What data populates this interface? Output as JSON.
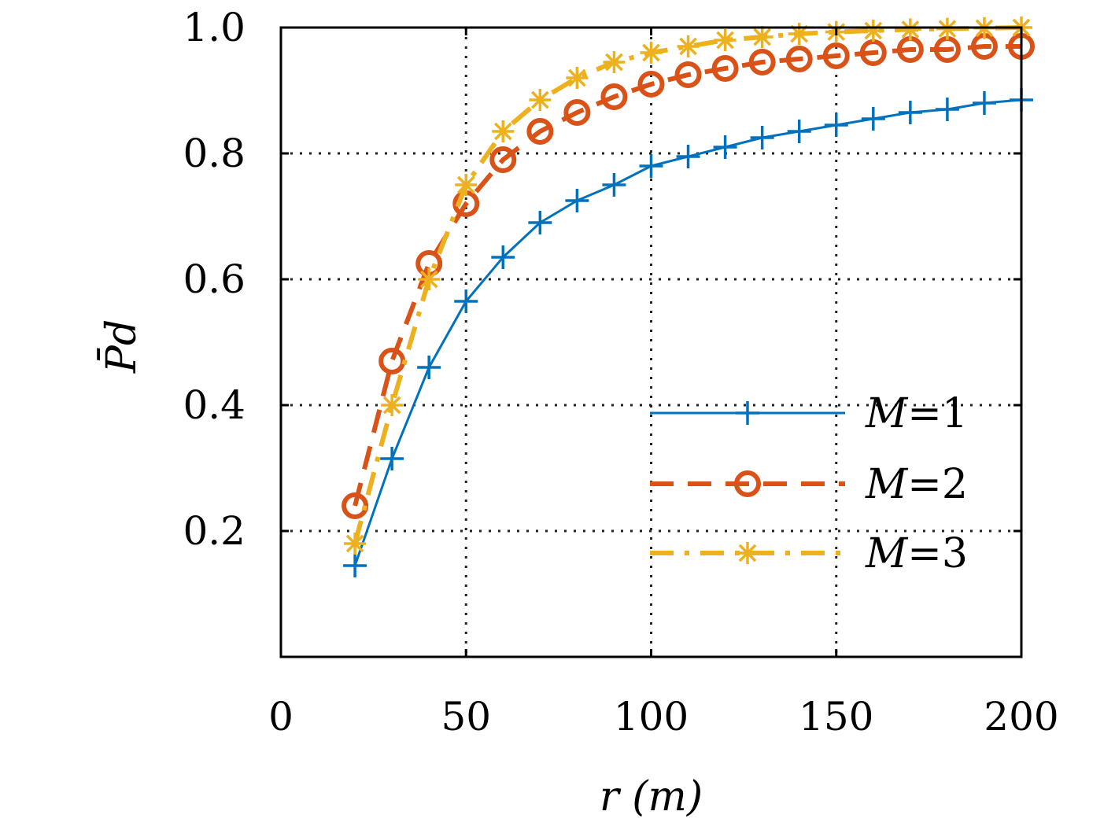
{
  "chart_data": {
    "type": "line",
    "title": "",
    "xlabel": "r (m)",
    "ylabel": "P̄d",
    "xlim": [
      0,
      200
    ],
    "ylim": [
      0,
      1.0
    ],
    "x_ticks": [
      0,
      50,
      100,
      150,
      200
    ],
    "x_tick_labels": [
      "0",
      "50",
      "100",
      "150",
      "200"
    ],
    "y_ticks": [
      0.2,
      0.4,
      0.6,
      0.8,
      1.0
    ],
    "y_tick_labels": [
      "0.2",
      "0.4",
      "0.6",
      "0.8",
      "1.0"
    ],
    "grid": true,
    "legend_position": "bottom-right",
    "x": [
      20,
      30,
      40,
      50,
      60,
      70,
      80,
      90,
      100,
      110,
      120,
      130,
      140,
      150,
      160,
      170,
      180,
      190,
      200
    ],
    "series": [
      {
        "name": "M=1",
        "legend_symbol": "M",
        "legend_value": "=1",
        "color": "#0072BD",
        "line_style": "solid",
        "marker": "plus",
        "values": [
          0.145,
          0.315,
          0.46,
          0.565,
          0.635,
          0.69,
          0.725,
          0.75,
          0.78,
          0.795,
          0.81,
          0.825,
          0.835,
          0.845,
          0.855,
          0.865,
          0.87,
          0.88,
          0.885
        ]
      },
      {
        "name": "M=2",
        "legend_symbol": "M",
        "legend_value": "=2",
        "color": "#D95319",
        "line_style": "dashed",
        "marker": "circle",
        "values": [
          0.24,
          0.47,
          0.625,
          0.72,
          0.79,
          0.835,
          0.865,
          0.89,
          0.91,
          0.925,
          0.935,
          0.945,
          0.95,
          0.955,
          0.96,
          0.965,
          0.965,
          0.97,
          0.97
        ]
      },
      {
        "name": "M=3",
        "legend_symbol": "M",
        "legend_value": "=3",
        "color": "#EDB120",
        "line_style": "dashdot",
        "marker": "asterisk",
        "values": [
          0.18,
          0.4,
          0.6,
          0.75,
          0.835,
          0.885,
          0.92,
          0.945,
          0.96,
          0.97,
          0.98,
          0.985,
          0.99,
          0.993,
          0.995,
          0.997,
          0.998,
          0.999,
          1.0
        ]
      }
    ]
  }
}
